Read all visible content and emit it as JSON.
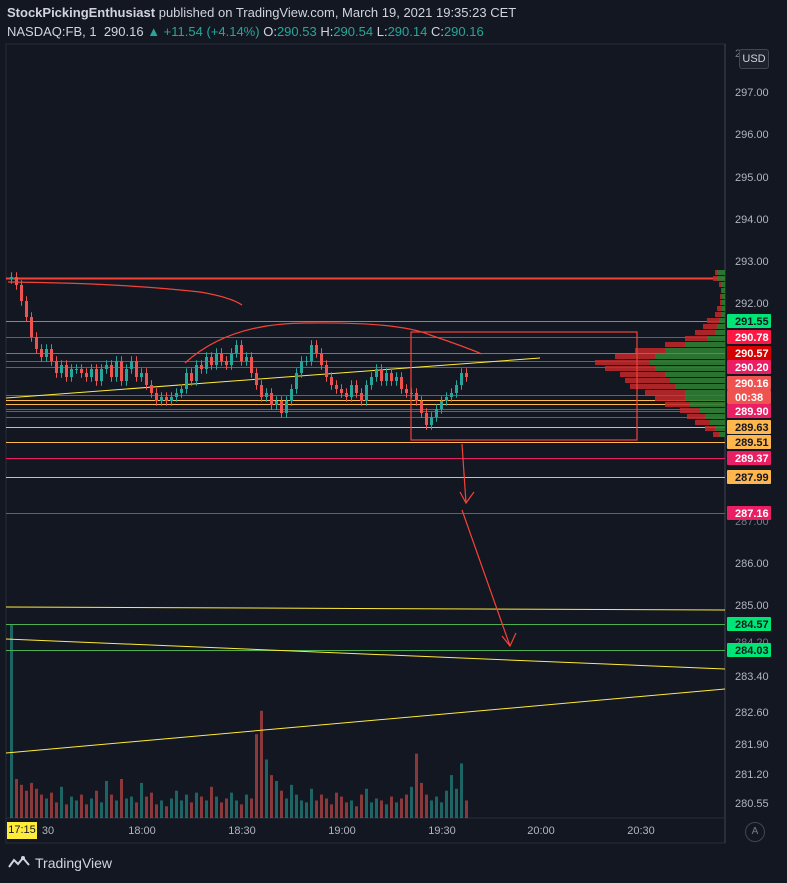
{
  "header": {
    "author": "StockPickingEnthusiast",
    "published_text": "published on TradingView.com, March 19, 2021 19:35:23 CET",
    "symbol": "NASDAQ:FB, 1",
    "last": "290.16",
    "change": "▲ +11.54 (+4.14%)",
    "open_label": "O:",
    "open": "290.53",
    "high_label": "H:",
    "high": "290.54",
    "low_label": "L:",
    "low": "290.14",
    "close_label": "C:",
    "close": "290.16"
  },
  "currency_button": "USD",
  "auto_button": "A",
  "footer": {
    "logo_text": "TradingView",
    "logo_icon": "tradingview-logo-icon"
  },
  "chart_data": {
    "type": "candlestick",
    "symbol": "NASDAQ:FB",
    "interval": "1",
    "x_axis": {
      "start_label": "17:15",
      "ticks": [
        "30",
        "18:00",
        "18:30",
        "19:00",
        "19:30",
        "20:00",
        "20:30"
      ]
    },
    "y_axis": {
      "price_ticks": [
        "297.00",
        "296.00",
        "295.00",
        "294.00",
        "293.00",
        "292.00",
        "286.00",
        "285.00"
      ],
      "lower_ticks": [
        "283.40",
        "282.60",
        "281.90",
        "281.20",
        "280.55"
      ],
      "partial_ticks": [
        "298.00",
        "287.00",
        "284.20"
      ]
    },
    "price_labels": [
      {
        "value": "291.55",
        "bg": "#00e676",
        "fg": "#131722"
      },
      {
        "value": "290.78",
        "bg": "#ff1744",
        "fg": "#ffffff"
      },
      {
        "value": "290.57",
        "bg": "#d50000",
        "fg": "#ffffff"
      },
      {
        "value": "290.20",
        "bg": "#e91e63",
        "fg": "#ffffff"
      },
      {
        "value": "290.16",
        "bg": "#ef5350",
        "fg": "#ffffff"
      },
      {
        "value": "00:38",
        "bg": "#ef5350",
        "fg": "#ffffff"
      },
      {
        "value": "289.90",
        "bg": "#e91e63",
        "fg": "#ffffff"
      },
      {
        "value": "289.63",
        "bg": "#ffb74d",
        "fg": "#131722"
      },
      {
        "value": "289.51",
        "bg": "#ffb74d",
        "fg": "#131722"
      },
      {
        "value": "289.37",
        "bg": "#e91e63",
        "fg": "#ffffff"
      },
      {
        "value": "287.99",
        "bg": "#ffb74d",
        "fg": "#131722"
      },
      {
        "value": "287.16",
        "bg": "#e91e63",
        "fg": "#ffffff"
      },
      {
        "value": "284.57",
        "bg": "#00e676",
        "fg": "#131722"
      },
      {
        "value": "284.03",
        "bg": "#00e676",
        "fg": "#131722"
      }
    ],
    "levels": [
      {
        "price": 292.6,
        "color": "#f44336"
      },
      {
        "price": 291.55,
        "color": "#4caf50"
      },
      {
        "price": 290.78,
        "color": "#e91e63"
      },
      {
        "price": 290.57,
        "color": "#f44336"
      },
      {
        "price": 290.2,
        "color": "#e91e63"
      },
      {
        "price": 289.9,
        "color": "#e91e63"
      },
      {
        "price": 289.63,
        "color": "#ffb74d"
      },
      {
        "price": 289.51,
        "color": "#ffb74d"
      },
      {
        "price": 289.37,
        "color": "#e91e63"
      },
      {
        "price": 287.99,
        "color": "#ffb74d"
      },
      {
        "price": 287.16,
        "color": "#e91e63"
      },
      {
        "price": 284.57,
        "color": "#4caf50"
      },
      {
        "price": 284.03,
        "color": "#4caf50"
      }
    ],
    "close_series": [
      292.7,
      292.5,
      292.1,
      291.7,
      291.2,
      290.9,
      290.7,
      290.9,
      290.6,
      290.3,
      290.5,
      290.2,
      290.4,
      290.4,
      290.3,
      290.2,
      290.4,
      290.1,
      290.4,
      290.5,
      290.2,
      290.6,
      290.1,
      290.4,
      290.6,
      290.2,
      290.3,
      290.0,
      289.8,
      289.6,
      289.7,
      289.6,
      289.7,
      289.8,
      289.9,
      290.3,
      290.1,
      290.5,
      290.4,
      290.7,
      290.5,
      290.8,
      290.6,
      290.5,
      290.8,
      291.0,
      290.6,
      290.7,
      290.3,
      290.0,
      289.7,
      289.8,
      289.5,
      289.6,
      289.3,
      289.6,
      289.9,
      290.3,
      290.6,
      290.6,
      291.0,
      290.8,
      290.5,
      290.2,
      290.0,
      289.9,
      289.8,
      289.7,
      290.0,
      289.8,
      289.6,
      290.0,
      290.2,
      290.4,
      290.1,
      290.3,
      290.1,
      290.2,
      289.9,
      289.8,
      289.8,
      289.6,
      289.3,
      289.0,
      289.2,
      289.4,
      289.6,
      289.7,
      289.8,
      290.0,
      290.3,
      290.2
    ],
    "volume_series": [
      0.99,
      0.2,
      0.17,
      0.14,
      0.18,
      0.15,
      0.12,
      0.1,
      0.13,
      0.08,
      0.16,
      0.07,
      0.11,
      0.09,
      0.12,
      0.07,
      0.1,
      0.14,
      0.08,
      0.19,
      0.12,
      0.09,
      0.2,
      0.1,
      0.11,
      0.08,
      0.18,
      0.11,
      0.13,
      0.07,
      0.09,
      0.06,
      0.1,
      0.14,
      0.09,
      0.12,
      0.08,
      0.13,
      0.11,
      0.09,
      0.16,
      0.11,
      0.08,
      0.1,
      0.13,
      0.09,
      0.07,
      0.12,
      0.1,
      0.43,
      0.55,
      0.3,
      0.22,
      0.19,
      0.14,
      0.1,
      0.17,
      0.12,
      0.09,
      0.08,
      0.15,
      0.09,
      0.12,
      0.1,
      0.07,
      0.13,
      0.11,
      0.08,
      0.09,
      0.06,
      0.12,
      0.15,
      0.08,
      0.1,
      0.09,
      0.07,
      0.11,
      0.08,
      0.1,
      0.12,
      0.16,
      0.33,
      0.18,
      0.12,
      0.09,
      0.11,
      0.08,
      0.14,
      0.22,
      0.15,
      0.28,
      0.09
    ]
  }
}
